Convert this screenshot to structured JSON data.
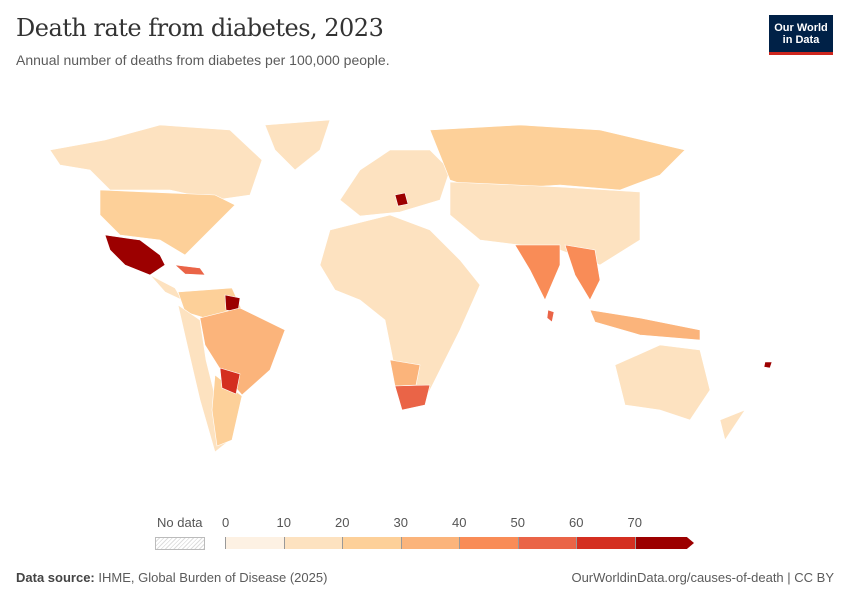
{
  "header": {
    "title": "Death rate from diabetes, 2023",
    "subtitle": "Annual number of deaths from diabetes per 100,000 people.",
    "logo": "Our World in Data"
  },
  "legend": {
    "no_data_label": "No data",
    "ticks": [
      "0",
      "10",
      "20",
      "30",
      "40",
      "50",
      "60",
      "70"
    ],
    "colors": [
      "#fdf1e3",
      "#fde2c0",
      "#fdd099",
      "#fbb47b",
      "#f98c57",
      "#ea6447",
      "#d42f20",
      "#9c0000"
    ]
  },
  "footer": {
    "source_label": "Data source:",
    "source": "IHME, Global Burden of Disease (2025)",
    "link": "OurWorldinData.org/causes-of-death | CC BY"
  }
}
